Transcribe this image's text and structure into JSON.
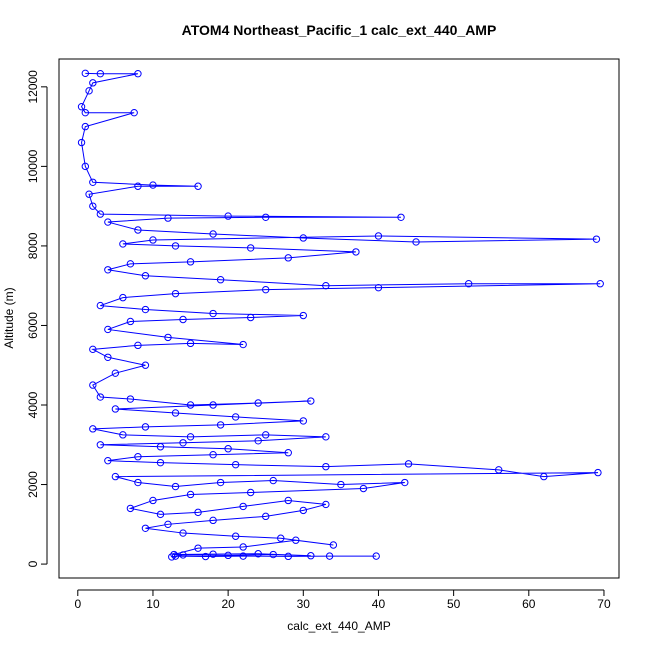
{
  "chart_data": {
    "type": "scatter",
    "title": "ATOM4 Northeast_Pacific_1 calc_ext_440_AMP",
    "xlabel": "calc_ext_440_AMP",
    "ylabel": "Altitude (m)",
    "xlim": [
      -2.5,
      72
    ],
    "ylim": [
      -350,
      12700
    ],
    "x_ticks": [
      0,
      10,
      20,
      30,
      40,
      50,
      60,
      70
    ],
    "x_tick_labels": [
      "0",
      "10",
      "20",
      "30",
      "40",
      "50",
      "60",
      "70"
    ],
    "y_ticks": [
      0,
      2000,
      4000,
      6000,
      8000,
      10000,
      12000
    ],
    "y_tick_labels": [
      "0",
      "2000",
      "4000",
      "6000",
      "8000",
      "10000",
      "12000"
    ],
    "grid": false,
    "legend": "none",
    "marker": "open-circle",
    "connected": true,
    "series": [
      {
        "values_description_omitted": true,
        "color": "#0000ff",
        "points": [
          [
            39.7,
            200
          ],
          [
            33.5,
            200
          ],
          [
            28,
            195
          ],
          [
            22,
            200
          ],
          [
            17,
            190
          ],
          [
            13,
            200
          ],
          [
            12.5,
            180
          ],
          [
            14,
            230
          ],
          [
            20,
            220
          ],
          [
            26,
            240
          ],
          [
            31,
            210
          ],
          [
            24,
            260
          ],
          [
            18,
            250
          ],
          [
            12.8,
            240
          ],
          [
            16,
            400
          ],
          [
            22,
            430
          ],
          [
            29,
            600
          ],
          [
            34,
            480
          ],
          [
            27,
            650
          ],
          [
            21,
            700
          ],
          [
            14,
            780
          ],
          [
            9,
            900
          ],
          [
            12,
            1000
          ],
          [
            18,
            1100
          ],
          [
            25,
            1200
          ],
          [
            30,
            1350
          ],
          [
            33,
            1500
          ],
          [
            28,
            1600
          ],
          [
            22,
            1450
          ],
          [
            16,
            1300
          ],
          [
            11,
            1250
          ],
          [
            7,
            1400
          ],
          [
            10,
            1600
          ],
          [
            15,
            1750
          ],
          [
            23,
            1800
          ],
          [
            38,
            1900
          ],
          [
            43.5,
            2050
          ],
          [
            35,
            2000
          ],
          [
            26,
            2100
          ],
          [
            19,
            2050
          ],
          [
            13,
            1950
          ],
          [
            8,
            2050
          ],
          [
            5,
            2200
          ],
          [
            69.2,
            2300
          ],
          [
            62,
            2200
          ],
          [
            56,
            2370
          ],
          [
            44,
            2520
          ],
          [
            33,
            2450
          ],
          [
            21,
            2500
          ],
          [
            11,
            2550
          ],
          [
            4,
            2600
          ],
          [
            8,
            2700
          ],
          [
            18,
            2750
          ],
          [
            28,
            2800
          ],
          [
            20,
            2900
          ],
          [
            11,
            2950
          ],
          [
            3,
            3000
          ],
          [
            14,
            3050
          ],
          [
            24,
            3100
          ],
          [
            33,
            3200
          ],
          [
            25,
            3250
          ],
          [
            15,
            3200
          ],
          [
            6,
            3250
          ],
          [
            2,
            3400
          ],
          [
            9,
            3450
          ],
          [
            19,
            3500
          ],
          [
            30,
            3600
          ],
          [
            21,
            3700
          ],
          [
            13,
            3800
          ],
          [
            5,
            3900
          ],
          [
            18,
            4000
          ],
          [
            31,
            4100
          ],
          [
            24,
            4050
          ],
          [
            15,
            4000
          ],
          [
            7,
            4150
          ],
          [
            3,
            4200
          ],
          [
            2,
            4500
          ],
          [
            5,
            4800
          ],
          [
            9,
            5000
          ],
          [
            4,
            5200
          ],
          [
            2,
            5400
          ],
          [
            8,
            5500
          ],
          [
            15,
            5550
          ],
          [
            22,
            5520
          ],
          [
            12,
            5700
          ],
          [
            4,
            5900
          ],
          [
            7,
            6100
          ],
          [
            14,
            6150
          ],
          [
            23,
            6200
          ],
          [
            30,
            6250
          ],
          [
            18,
            6300
          ],
          [
            9,
            6400
          ],
          [
            3,
            6500
          ],
          [
            6,
            6700
          ],
          [
            13,
            6800
          ],
          [
            25,
            6900
          ],
          [
            40,
            6950
          ],
          [
            69.5,
            7050
          ],
          [
            52,
            7050
          ],
          [
            33,
            7000
          ],
          [
            19,
            7150
          ],
          [
            9,
            7250
          ],
          [
            4,
            7400
          ],
          [
            7,
            7550
          ],
          [
            15,
            7600
          ],
          [
            28,
            7700
          ],
          [
            37,
            7850
          ],
          [
            23,
            7950
          ],
          [
            13,
            8000
          ],
          [
            6,
            8050
          ],
          [
            10,
            8150
          ],
          [
            40,
            8250
          ],
          [
            69,
            8170
          ],
          [
            45,
            8100
          ],
          [
            30,
            8200
          ],
          [
            18,
            8300
          ],
          [
            8,
            8400
          ],
          [
            4,
            8600
          ],
          [
            12,
            8700
          ],
          [
            25,
            8720
          ],
          [
            43,
            8720
          ],
          [
            20,
            8750
          ],
          [
            3,
            8800
          ],
          [
            2,
            9000
          ],
          [
            1.5,
            9300
          ],
          [
            8,
            9500
          ],
          [
            16,
            9500
          ],
          [
            10,
            9530
          ],
          [
            2,
            9600
          ],
          [
            1,
            10000
          ],
          [
            0.5,
            10600
          ],
          [
            1,
            11000
          ],
          [
            7.5,
            11350
          ],
          [
            1,
            11350
          ],
          [
            0.5,
            11500
          ],
          [
            1.5,
            11900
          ],
          [
            2,
            12100
          ],
          [
            8,
            12330
          ],
          [
            3,
            12330
          ],
          [
            1,
            12340
          ]
        ]
      }
    ]
  }
}
